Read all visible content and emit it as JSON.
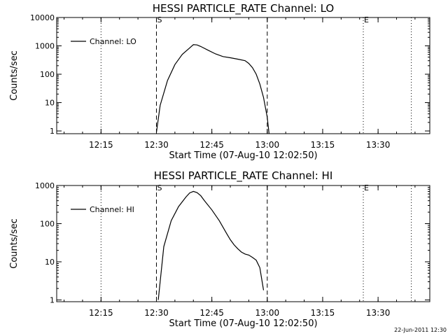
{
  "footer": {
    "stamp": "22-Jun-2011 12:30"
  },
  "chart_data": [
    {
      "type": "line",
      "title": "HESSI PARTICLE_RATE Channel: LO",
      "xlabel": "Start Time (07-Aug-10 12:02:50)",
      "ylabel": "Counts/sec",
      "yscale": "log",
      "xlim": [
        "12:03",
        "13:44"
      ],
      "ylim": [
        0.8,
        10000
      ],
      "x_ticks": [
        "12:15",
        "12:30",
        "12:45",
        "13:00",
        "13:15",
        "13:30"
      ],
      "y_ticks": [
        "1",
        "10",
        "100",
        "1000",
        "10000"
      ],
      "legend": {
        "position": "top-left",
        "label": "Channel: LO"
      },
      "markers": [
        {
          "label": "",
          "time": "12:15",
          "style": "dotted"
        },
        {
          "label": "S",
          "time": "12:30",
          "style": "dashed"
        },
        {
          "label": "",
          "time": "13:00",
          "style": "dashed"
        },
        {
          "label": "E",
          "time": "13:26",
          "style": "dotted"
        },
        {
          "label": "",
          "time": "13:39",
          "style": "dotted"
        }
      ],
      "series": [
        {
          "name": "Channel: LO",
          "x": [
            "12:30",
            "12:31",
            "12:33",
            "12:35",
            "12:37",
            "12:39",
            "12:40",
            "12:41",
            "12:42",
            "12:44",
            "12:46",
            "12:48",
            "12:50",
            "12:52",
            "12:54",
            "12:55",
            "12:56",
            "12:57",
            "12:58",
            "12:59",
            "13:00",
            "13:00:30"
          ],
          "y": [
            0.9,
            8,
            60,
            220,
            500,
            850,
            1100,
            1080,
            950,
            700,
            520,
            420,
            380,
            340,
            300,
            240,
            170,
            100,
            45,
            15,
            3,
            0.8
          ]
        }
      ]
    },
    {
      "type": "line",
      "title": "HESSI PARTICLE_RATE Channel: HI",
      "xlabel": "Start Time (07-Aug-10 12:02:50)",
      "ylabel": "Counts/sec",
      "yscale": "log",
      "xlim": [
        "12:03",
        "13:44"
      ],
      "ylim": [
        0.9,
        1000
      ],
      "x_ticks": [
        "12:15",
        "12:30",
        "12:45",
        "13:00",
        "13:15",
        "13:30"
      ],
      "y_ticks": [
        "1",
        "10",
        "100",
        "1000"
      ],
      "legend": {
        "position": "top-left",
        "label": "Channel: HI"
      },
      "markers": [
        {
          "label": "",
          "time": "12:15",
          "style": "dotted"
        },
        {
          "label": "S",
          "time": "12:30",
          "style": "dashed"
        },
        {
          "label": "",
          "time": "13:00",
          "style": "dashed"
        },
        {
          "label": "E",
          "time": "13:26",
          "style": "dotted"
        },
        {
          "label": "",
          "time": "13:39",
          "style": "dotted"
        }
      ],
      "series": [
        {
          "name": "Channel: HI",
          "x": [
            "12:30:30",
            "12:31",
            "12:32",
            "12:34",
            "12:36",
            "12:38",
            "12:39",
            "12:40",
            "12:41",
            "12:42",
            "12:43",
            "12:45",
            "12:47",
            "12:49",
            "12:50",
            "12:51",
            "12:52",
            "12:53",
            "12:54",
            "12:55",
            "12:56",
            "12:57",
            "12:58",
            "12:59"
          ],
          "y": [
            1,
            3,
            25,
            120,
            280,
            500,
            640,
            700,
            650,
            540,
            400,
            230,
            120,
            55,
            38,
            28,
            22,
            18,
            16,
            15,
            13,
            11,
            7,
            1.8
          ]
        }
      ]
    }
  ]
}
